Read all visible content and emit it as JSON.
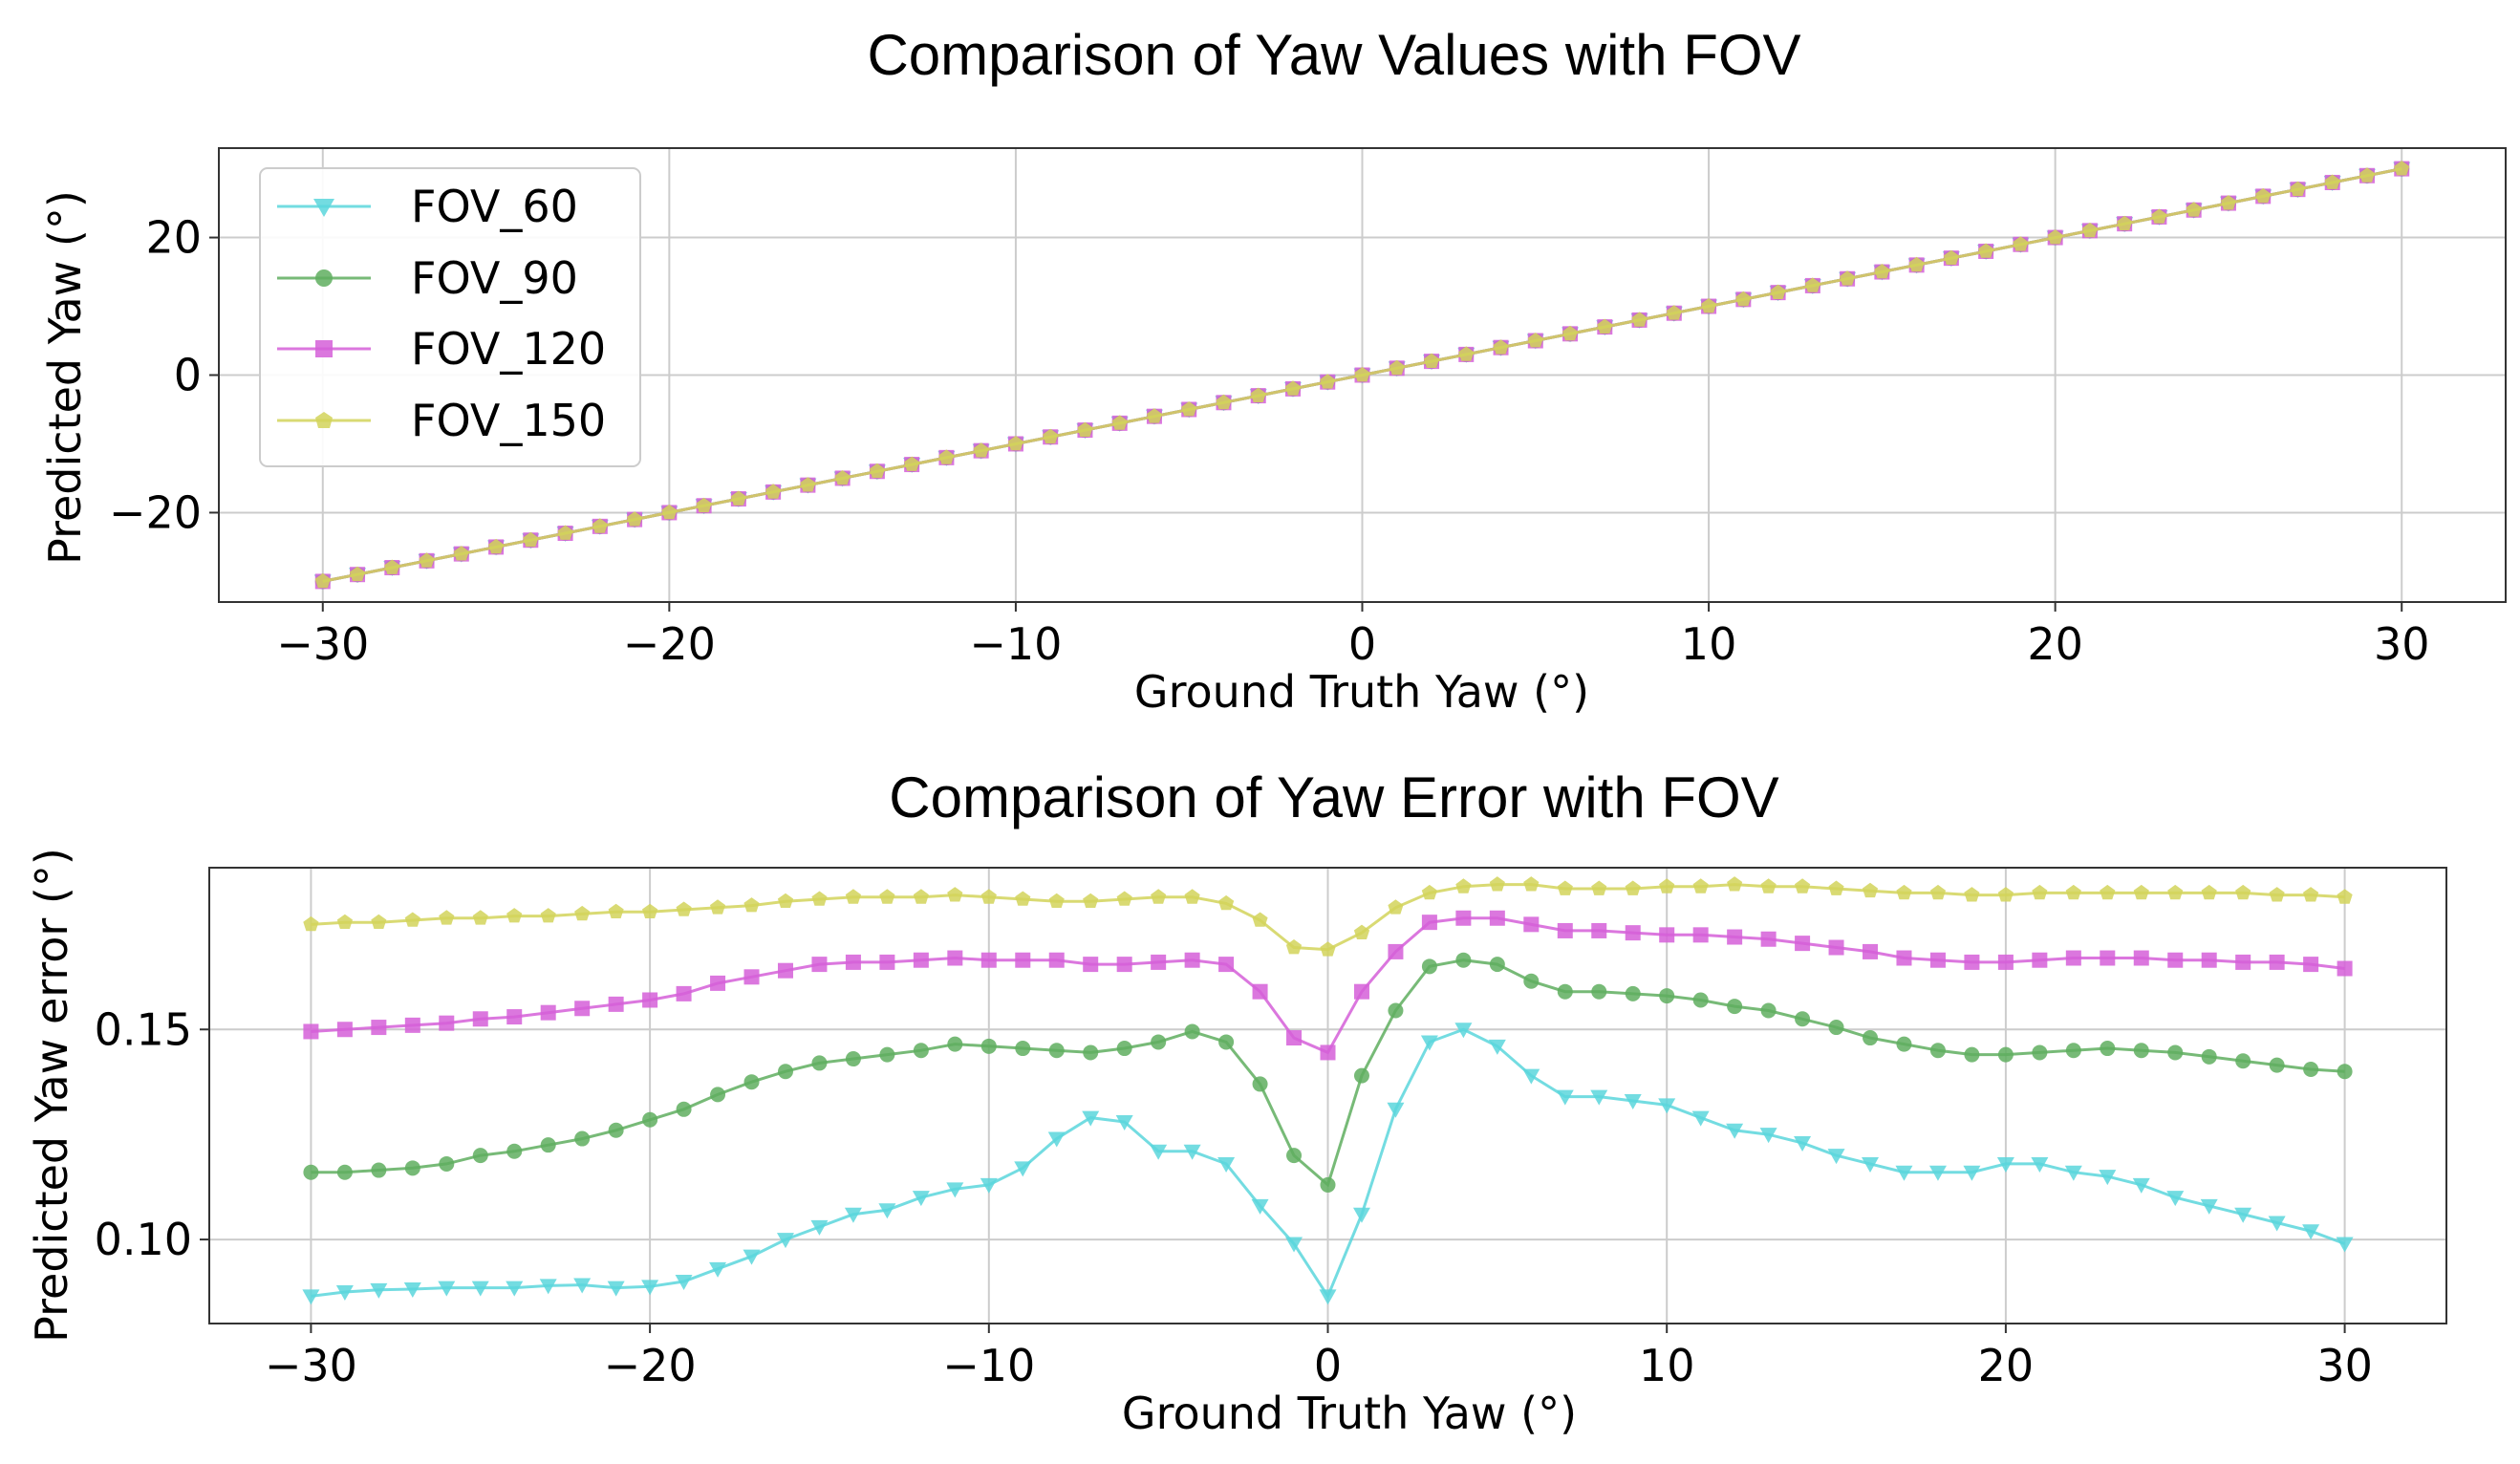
{
  "colors": {
    "FOV_60": "#5bd6dc",
    "FOV_90": "#5fae5f",
    "FOV_120": "#d55fd8",
    "FOV_150": "#d2d45a",
    "grid": "#cccccc",
    "frame": "#333333"
  },
  "chart_data": [
    {
      "type": "line",
      "title": "Comparison of Yaw Values with FOV",
      "xlabel": "Ground Truth Yaw (°)",
      "ylabel": "Predicted Yaw (°)",
      "xlim": [
        -33,
        33
      ],
      "ylim": [
        -33,
        33
      ],
      "xticks": [
        -30,
        -20,
        -10,
        0,
        10,
        20,
        30
      ],
      "xticklabels": [
        "−30",
        "−20",
        "−10",
        "0",
        "10",
        "20",
        "30"
      ],
      "yticks": [
        -20,
        0,
        20
      ],
      "yticklabels": [
        "−20",
        "0",
        "20"
      ],
      "grid": true,
      "legend": {
        "position": "upper-left",
        "entries": [
          "FOV_60",
          "FOV_90",
          "FOV_120",
          "FOV_150"
        ]
      },
      "x": [
        -30,
        -29,
        -28,
        -27,
        -26,
        -25,
        -24,
        -23,
        -22,
        -21,
        -20,
        -19,
        -18,
        -17,
        -16,
        -15,
        -14,
        -13,
        -12,
        -11,
        -10,
        -9,
        -8,
        -7,
        -6,
        -5,
        -4,
        -3,
        -2,
        -1,
        0,
        1,
        2,
        3,
        4,
        5,
        6,
        7,
        8,
        9,
        10,
        11,
        12,
        13,
        14,
        15,
        16,
        17,
        18,
        19,
        20,
        21,
        22,
        23,
        24,
        25,
        26,
        27,
        28,
        29,
        30
      ],
      "series": [
        {
          "name": "FOV_60",
          "marker": "triangle-down",
          "values": [
            -30,
            -29,
            -28,
            -27,
            -26,
            -25,
            -24,
            -23,
            -22,
            -21,
            -20,
            -19,
            -18,
            -17,
            -16,
            -15,
            -14,
            -13,
            -12,
            -11,
            -10,
            -9,
            -8,
            -7,
            -6,
            -5,
            -4,
            -3,
            -2,
            -1,
            0,
            1,
            2,
            3,
            4,
            5,
            6,
            7,
            8,
            9,
            10,
            11,
            12,
            13,
            14,
            15,
            16,
            17,
            18,
            19,
            20,
            21,
            22,
            23,
            24,
            25,
            26,
            27,
            28,
            29,
            30
          ]
        },
        {
          "name": "FOV_90",
          "marker": "circle",
          "values": [
            -30,
            -29,
            -28,
            -27,
            -26,
            -25,
            -24,
            -23,
            -22,
            -21,
            -20,
            -19,
            -18,
            -17,
            -16,
            -15,
            -14,
            -13,
            -12,
            -11,
            -10,
            -9,
            -8,
            -7,
            -6,
            -5,
            -4,
            -3,
            -2,
            -1,
            0,
            1,
            2,
            3,
            4,
            5,
            6,
            7,
            8,
            9,
            10,
            11,
            12,
            13,
            14,
            15,
            16,
            17,
            18,
            19,
            20,
            21,
            22,
            23,
            24,
            25,
            26,
            27,
            28,
            29,
            30
          ]
        },
        {
          "name": "FOV_120",
          "marker": "square",
          "values": [
            -30,
            -29,
            -28,
            -27,
            -26,
            -25,
            -24,
            -23,
            -22,
            -21,
            -20,
            -19,
            -18,
            -17,
            -16,
            -15,
            -14,
            -13,
            -12,
            -11,
            -10,
            -9,
            -8,
            -7,
            -6,
            -5,
            -4,
            -3,
            -2,
            -1,
            0,
            1,
            2,
            3,
            4,
            5,
            6,
            7,
            8,
            9,
            10,
            11,
            12,
            13,
            14,
            15,
            16,
            17,
            18,
            19,
            20,
            21,
            22,
            23,
            24,
            25,
            26,
            27,
            28,
            29,
            30
          ]
        },
        {
          "name": "FOV_150",
          "marker": "pentagon",
          "values": [
            -30,
            -29,
            -28,
            -27,
            -26,
            -25,
            -24,
            -23,
            -22,
            -21,
            -20,
            -19,
            -18,
            -17,
            -16,
            -15,
            -14,
            -13,
            -12,
            -11,
            -10,
            -9,
            -8,
            -7,
            -6,
            -5,
            -4,
            -3,
            -2,
            -1,
            0,
            1,
            2,
            3,
            4,
            5,
            6,
            7,
            8,
            9,
            10,
            11,
            12,
            13,
            14,
            15,
            16,
            17,
            18,
            19,
            20,
            21,
            22,
            23,
            24,
            25,
            26,
            27,
            28,
            29,
            30
          ]
        }
      ]
    },
    {
      "type": "line",
      "title": "Comparison of Yaw Error with FOV",
      "xlabel": "Ground Truth Yaw (°)",
      "ylabel": "Predicted Yaw error (°)",
      "xlim": [
        -33,
        33
      ],
      "ylim": [
        0.08,
        0.1885
      ],
      "xticks": [
        -30,
        -20,
        -10,
        0,
        10,
        20,
        30
      ],
      "xticklabels": [
        "−30",
        "−20",
        "−10",
        "0",
        "10",
        "20",
        "30"
      ],
      "yticks": [
        0.1,
        0.15
      ],
      "yticklabels": [
        "0.10",
        "0.15"
      ],
      "grid": true,
      "x": [
        -30,
        -29,
        -28,
        -27,
        -26,
        -25,
        -24,
        -23,
        -22,
        -21,
        -20,
        -19,
        -18,
        -17,
        -16,
        -15,
        -14,
        -13,
        -12,
        -11,
        -10,
        -9,
        -8,
        -7,
        -6,
        -5,
        -4,
        -3,
        -2,
        -1,
        0,
        1,
        2,
        3,
        4,
        5,
        6,
        7,
        8,
        9,
        10,
        11,
        12,
        13,
        14,
        15,
        16,
        17,
        18,
        19,
        20,
        21,
        22,
        23,
        24,
        25,
        26,
        27,
        28,
        29,
        30
      ],
      "series": [
        {
          "name": "FOV_60",
          "marker": "triangle-down",
          "values": [
            0.0865,
            0.0875,
            0.088,
            0.0882,
            0.0885,
            0.0885,
            0.0885,
            0.089,
            0.0892,
            0.0885,
            0.0888,
            0.09,
            0.093,
            0.096,
            0.1,
            0.103,
            0.106,
            0.107,
            0.11,
            0.112,
            0.113,
            0.117,
            0.124,
            0.129,
            0.128,
            0.121,
            0.121,
            0.118,
            0.108,
            0.099,
            0.0865,
            0.106,
            0.131,
            0.147,
            0.15,
            0.146,
            0.139,
            0.134,
            0.134,
            0.133,
            0.132,
            0.129,
            0.126,
            0.125,
            0.123,
            0.12,
            0.118,
            0.116,
            0.116,
            0.116,
            0.118,
            0.118,
            0.116,
            0.115,
            0.113,
            0.11,
            0.108,
            0.106,
            0.104,
            0.102,
            0.099
          ]
        },
        {
          "name": "FOV_90",
          "marker": "circle",
          "values": [
            0.116,
            0.116,
            0.1165,
            0.117,
            0.118,
            0.12,
            0.121,
            0.1225,
            0.124,
            0.126,
            0.1285,
            0.131,
            0.1345,
            0.1375,
            0.14,
            0.142,
            0.143,
            0.144,
            0.145,
            0.1465,
            0.146,
            0.1455,
            0.145,
            0.1445,
            0.1455,
            0.147,
            0.1495,
            0.147,
            0.137,
            0.12,
            0.113,
            0.139,
            0.1545,
            0.165,
            0.1665,
            0.1655,
            0.1615,
            0.159,
            0.159,
            0.1585,
            0.158,
            0.157,
            0.1555,
            0.1545,
            0.1525,
            0.1505,
            0.148,
            0.1465,
            0.145,
            0.144,
            0.144,
            0.1445,
            0.145,
            0.1455,
            0.145,
            0.1445,
            0.1435,
            0.1425,
            0.1415,
            0.1405,
            0.14
          ]
        },
        {
          "name": "FOV_120",
          "marker": "square",
          "values": [
            0.1495,
            0.15,
            0.1505,
            0.151,
            0.1515,
            0.1525,
            0.153,
            0.154,
            0.155,
            0.156,
            0.157,
            0.1585,
            0.161,
            0.1625,
            0.164,
            0.1655,
            0.166,
            0.166,
            0.1665,
            0.167,
            0.1665,
            0.1665,
            0.1665,
            0.1655,
            0.1655,
            0.166,
            0.1665,
            0.1655,
            0.159,
            0.148,
            0.1445,
            0.159,
            0.1685,
            0.1755,
            0.1765,
            0.1765,
            0.175,
            0.1735,
            0.1735,
            0.173,
            0.1725,
            0.1725,
            0.172,
            0.1715,
            0.1705,
            0.1695,
            0.1685,
            0.167,
            0.1665,
            0.166,
            0.166,
            0.1665,
            0.167,
            0.167,
            0.167,
            0.1665,
            0.1665,
            0.166,
            0.166,
            0.1655,
            0.1645
          ]
        },
        {
          "name": "FOV_150",
          "marker": "pentagon",
          "values": [
            0.175,
            0.1755,
            0.1755,
            0.176,
            0.1765,
            0.1765,
            0.177,
            0.177,
            0.1775,
            0.178,
            0.178,
            0.1785,
            0.179,
            0.1795,
            0.1805,
            0.181,
            0.1815,
            0.1815,
            0.1815,
            0.182,
            0.1815,
            0.181,
            0.1805,
            0.1805,
            0.181,
            0.1815,
            0.1815,
            0.18,
            0.176,
            0.1695,
            0.169,
            0.173,
            0.179,
            0.1825,
            0.184,
            0.1845,
            0.1845,
            0.1835,
            0.1835,
            0.1835,
            0.184,
            0.184,
            0.1845,
            0.184,
            0.184,
            0.1835,
            0.183,
            0.1825,
            0.1825,
            0.182,
            0.182,
            0.1825,
            0.1825,
            0.1825,
            0.1825,
            0.1825,
            0.1825,
            0.1825,
            0.182,
            0.182,
            0.1815
          ]
        }
      ]
    }
  ]
}
